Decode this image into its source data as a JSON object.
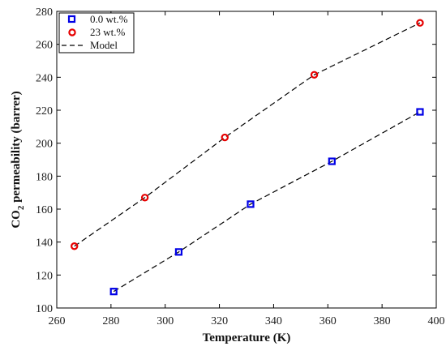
{
  "chart_data": {
    "type": "scatter",
    "title": "",
    "xlabel": "Temperature (K)",
    "ylabel_parts": [
      "CO",
      "2",
      " permeability (barrer)"
    ],
    "xlim": [
      260,
      400
    ],
    "ylim": [
      100,
      280
    ],
    "xticks": [
      260,
      280,
      300,
      320,
      340,
      360,
      380,
      400
    ],
    "yticks": [
      100,
      120,
      140,
      160,
      180,
      200,
      220,
      240,
      260,
      280
    ],
    "grid": false,
    "legend_position": "top-left",
    "series": [
      {
        "name": "0.0 wt.%",
        "marker": "square",
        "color": "#0000e6",
        "x": [
          281,
          305,
          331.5,
          361.5,
          394
        ],
        "y": [
          110,
          134,
          163,
          189,
          219
        ]
      },
      {
        "name": "23 wt.%",
        "marker": "circle",
        "color": "#e60000",
        "x": [
          266.5,
          292.5,
          322,
          355,
          394
        ],
        "y": [
          137.5,
          167,
          203.5,
          241.5,
          273
        ]
      }
    ],
    "model": {
      "name": "Model",
      "style": "dashed",
      "color": "#000000",
      "lines": [
        {
          "x": [
            281,
            305,
            331.5,
            361.5,
            394
          ],
          "y": [
            110,
            134,
            163,
            189,
            219
          ]
        },
        {
          "x": [
            266.5,
            292.5,
            322,
            355,
            394
          ],
          "y": [
            137.5,
            167,
            203.5,
            241.5,
            273
          ]
        }
      ]
    }
  }
}
